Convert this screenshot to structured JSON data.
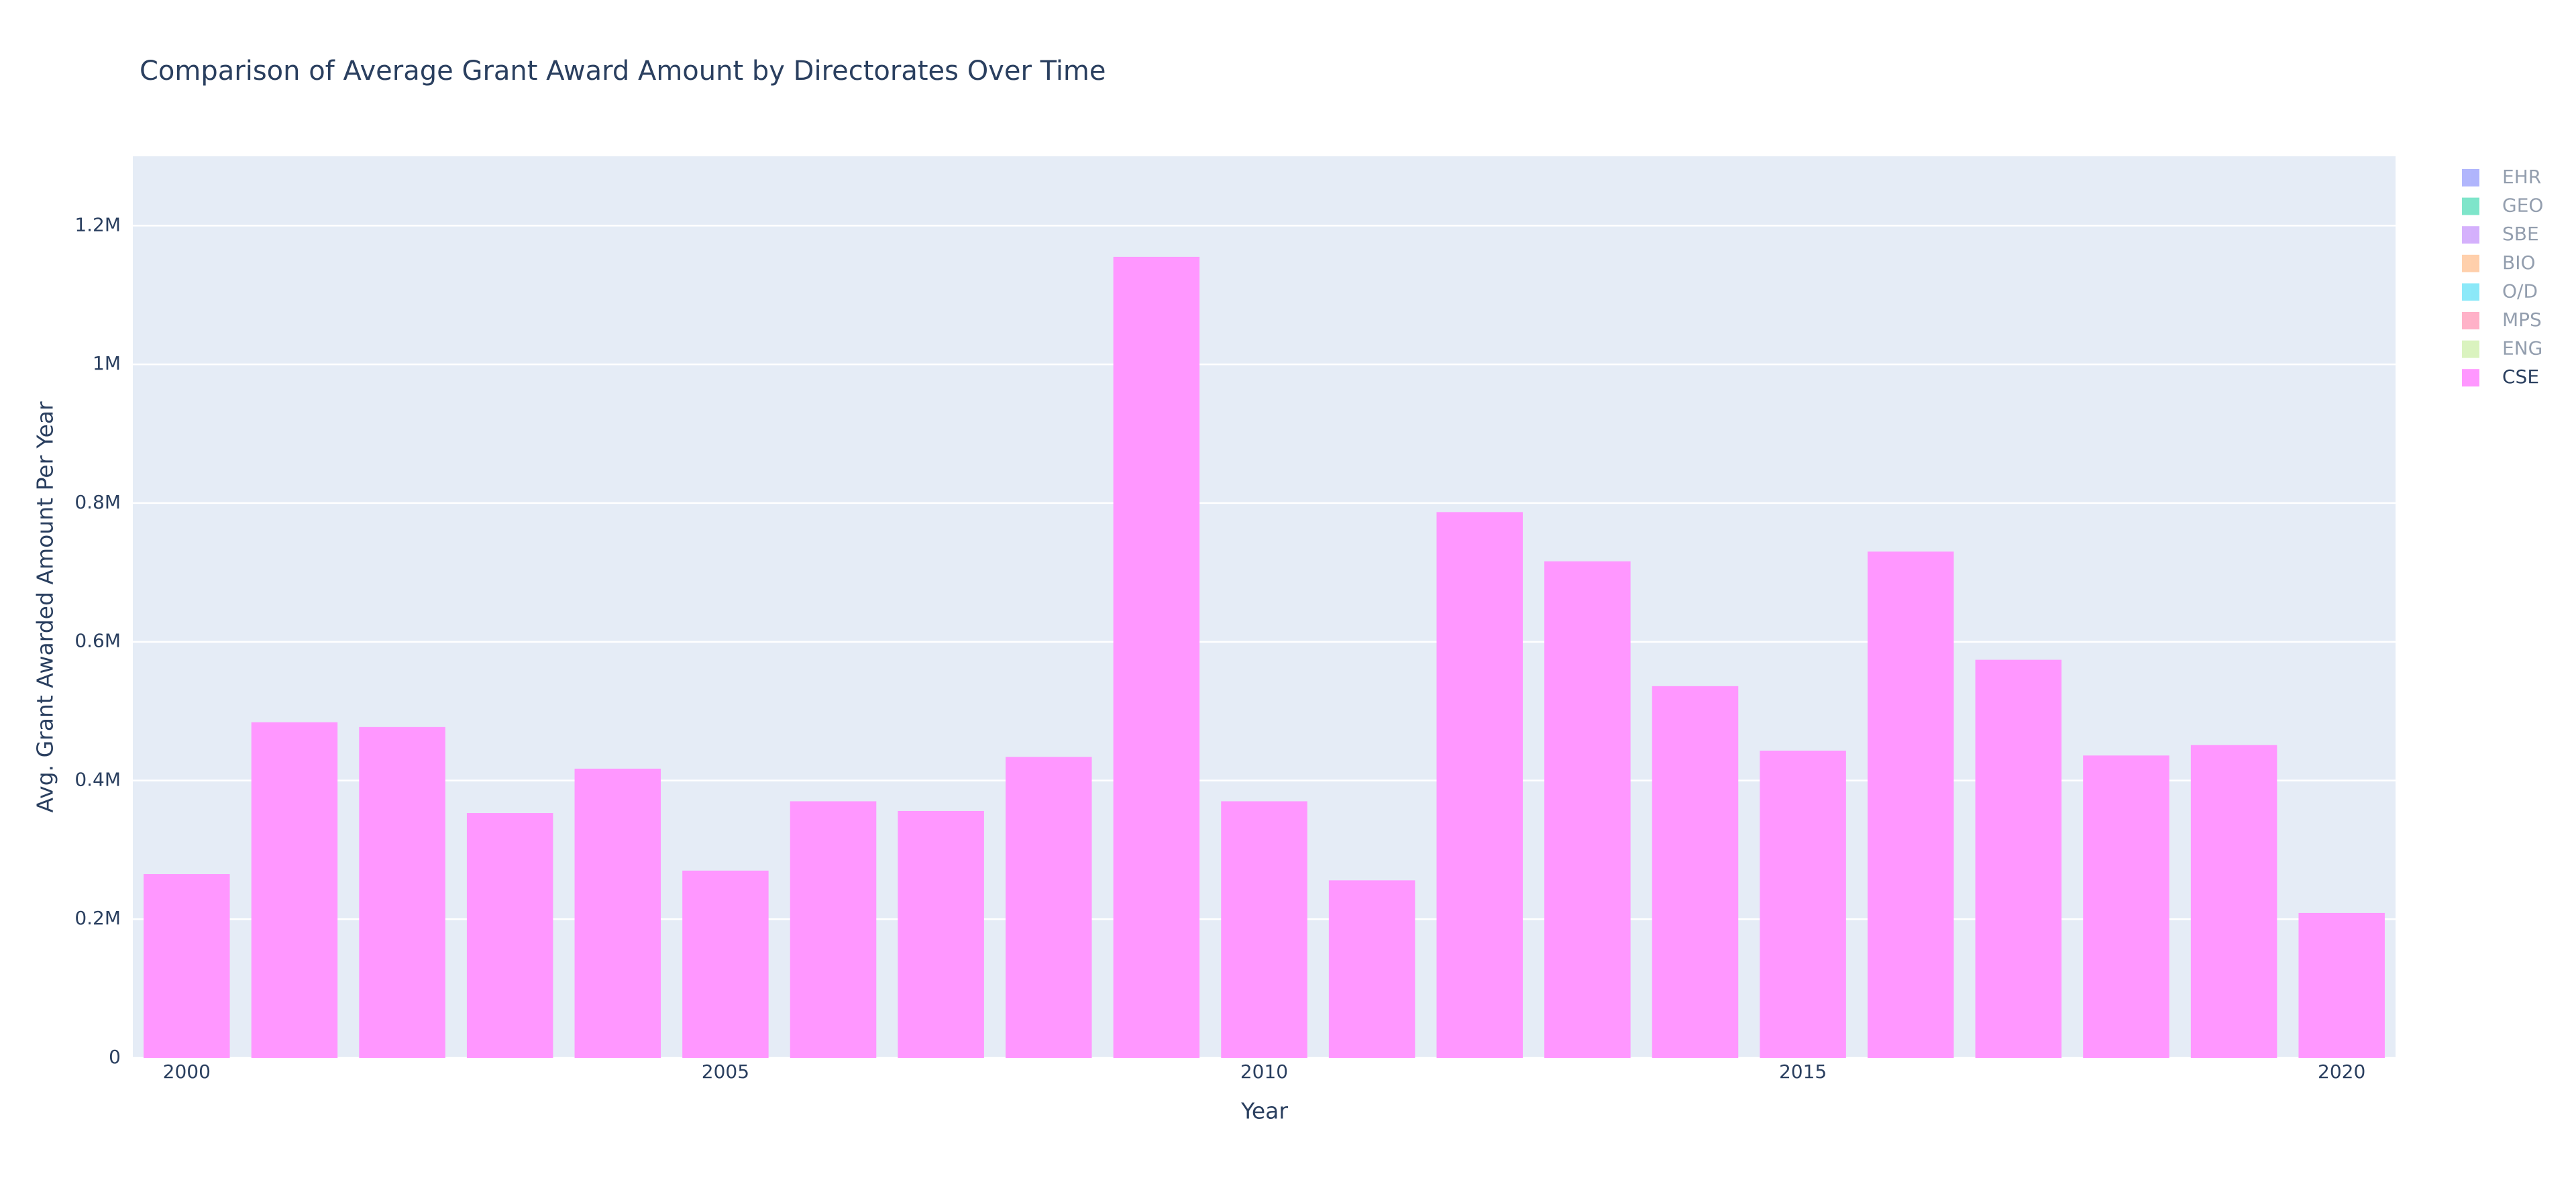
{
  "chart_data": {
    "type": "bar",
    "title": "Comparison of Average Grant Award Amount by Directorates Over Time",
    "x_label": "Year",
    "y_label": "Avg. Grant Awarded Amount Per Year",
    "x": [
      2000,
      2001,
      2002,
      2003,
      2004,
      2005,
      2006,
      2007,
      2008,
      2009,
      2010,
      2011,
      2012,
      2013,
      2014,
      2015,
      2016,
      2017,
      2018,
      2019,
      2020
    ],
    "series": [
      {
        "name": "EHR",
        "color": "#636efa",
        "visible": "legendonly"
      },
      {
        "name": "GEO",
        "color": "#00cc96",
        "visible": "legendonly"
      },
      {
        "name": "SBE",
        "color": "#ab63fa",
        "visible": "legendonly"
      },
      {
        "name": "BIO",
        "color": "#ffa15a",
        "visible": "legendonly"
      },
      {
        "name": "O/D",
        "color": "#19d3f3",
        "visible": "legendonly"
      },
      {
        "name": "MPS",
        "color": "#ff6692",
        "visible": "legendonly"
      },
      {
        "name": "ENG",
        "color": "#b6e880",
        "visible": "legendonly"
      },
      {
        "name": "CSE",
        "color": "#ff97ff",
        "values": [
          265000,
          484000,
          477000,
          353000,
          417000,
          270000,
          370000,
          356000,
          434000,
          1155000,
          370000,
          256000,
          787000,
          716000,
          536000,
          443000,
          730000,
          574000,
          436000,
          451000,
          209000
        ]
      }
    ],
    "xlim": [
      1999.5,
      2020.5
    ],
    "xticks": [
      2000,
      2005,
      2010,
      2015,
      2020
    ],
    "ylim": [
      0,
      1300000
    ],
    "yticks": [
      0,
      {
        "value": 200000,
        "label": "0.2M"
      },
      {
        "value": 400000,
        "label": "0.4M"
      },
      {
        "value": 600000,
        "label": "0.6M"
      },
      {
        "value": 800000,
        "label": "0.8M"
      },
      {
        "value": 1000000,
        "label": "1M"
      },
      {
        "value": 1200000,
        "label": "1.2M"
      }
    ],
    "grid": true,
    "legend": "right"
  }
}
